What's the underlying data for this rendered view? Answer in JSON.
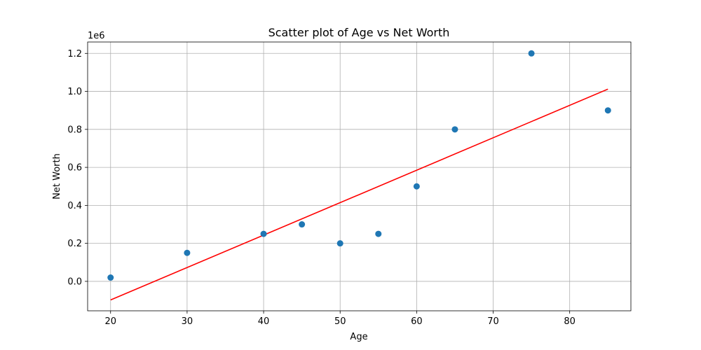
{
  "chart_data": {
    "type": "scatter",
    "title": "Scatter plot of Age vs Net Worth",
    "xlabel": "Age",
    "ylabel": "Net Worth",
    "y_offset_text": "1e6",
    "xlim": [
      17,
      88
    ],
    "ylim": [
      -0.155,
      1.26
    ],
    "xticks": [
      20,
      30,
      40,
      50,
      60,
      70,
      80
    ],
    "yticks": [
      0.0,
      0.2,
      0.4,
      0.6,
      0.8,
      1.0,
      1.2
    ],
    "ytick_labels": [
      "0.0",
      "0.2",
      "0.4",
      "0.6",
      "0.8",
      "1.0",
      "1.2"
    ],
    "grid": true,
    "series": [
      {
        "x": [
          20,
          30,
          40,
          45,
          50,
          55,
          60,
          65,
          75,
          85
        ],
        "y": [
          0.02,
          0.15,
          0.25,
          0.3,
          0.2,
          0.25,
          0.5,
          0.8,
          1.2,
          0.9
        ],
        "color": "#1f77b4"
      }
    ],
    "trendline": {
      "x": [
        20,
        85
      ],
      "y": [
        -0.098,
        1.012
      ],
      "color": "#ff0000"
    }
  }
}
